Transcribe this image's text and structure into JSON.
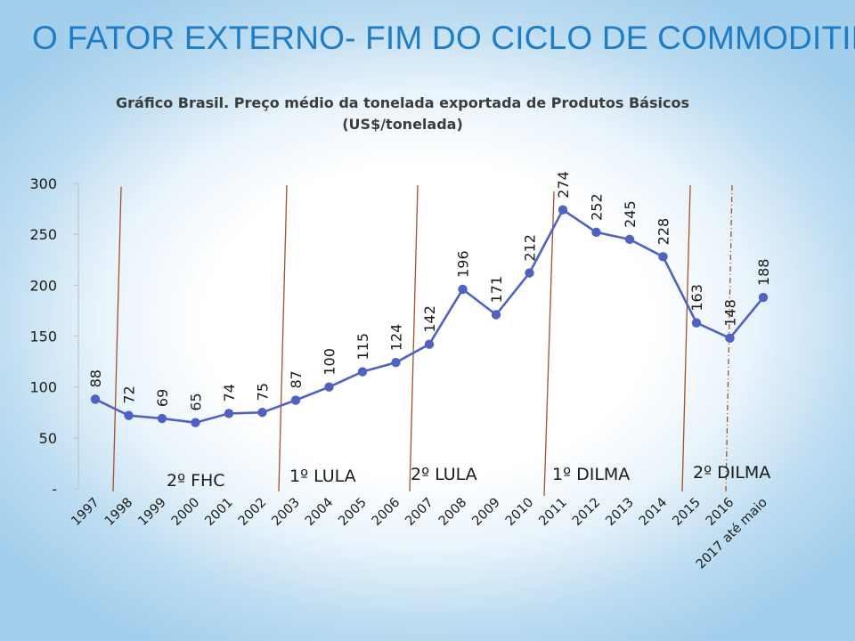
{
  "slide": {
    "title": "O FATOR EXTERNO-  FIM DO CICLO DE COMMODITIES"
  },
  "chart_data": {
    "type": "line",
    "title": "Gráfico Brasil. Preço médio da tonelada exportada de Produtos Básicos",
    "subtitle": "(US$/tonelada)",
    "categories": [
      "1997",
      "1998",
      "1999",
      "2000",
      "2001",
      "2002",
      "2003",
      "2004",
      "2005",
      "2006",
      "2007",
      "2008",
      "2009",
      "2010",
      "2011",
      "2012",
      "2013",
      "2014",
      "2015",
      "2016",
      "2017 até maio"
    ],
    "series": [
      {
        "name": "Preço médio (US$/tonelada)",
        "values": [
          88,
          72,
          69,
          65,
          74,
          75,
          87,
          100,
          115,
          124,
          142,
          196,
          171,
          212,
          274,
          252,
          245,
          228,
          163,
          148,
          188
        ],
        "color": "#4f62c2"
      }
    ],
    "y_tick_labels": [
      "-",
      "50",
      "100",
      "150",
      "200",
      "250",
      "300"
    ],
    "ylim": [
      0,
      300
    ],
    "grid": false,
    "periods": [
      "2º FHC",
      "1º LULA",
      "2º LULA",
      "1º DILMA",
      "2º DILMA"
    ],
    "divider_color": "#a0522d"
  }
}
